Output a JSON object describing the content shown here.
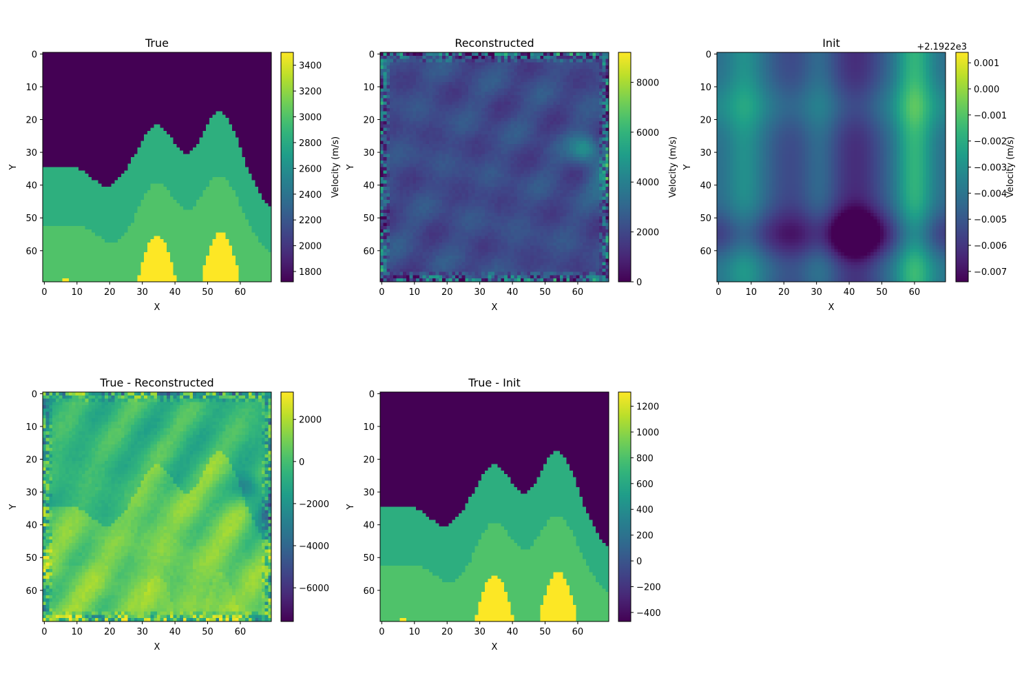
{
  "colors": {
    "viridis": [
      "#440154",
      "#482878",
      "#3e4989",
      "#31688e",
      "#26828e",
      "#1f9e89",
      "#35b779",
      "#6ece58",
      "#b5de2b",
      "#fde725"
    ]
  },
  "chart_data": [
    {
      "type": "heatmap",
      "title": "True",
      "xlabel": "X",
      "ylabel": "Y",
      "grid_size": [
        70,
        70
      ],
      "x_ticks": [
        "0",
        "10",
        "20",
        "30",
        "40",
        "50",
        "60"
      ],
      "y_ticks": [
        "0",
        "10",
        "20",
        "30",
        "40",
        "50",
        "60"
      ],
      "colorbar": {
        "label": "Velocity (m/s)",
        "range": [
          1720,
          3500
        ],
        "ticks": [
          1800,
          2000,
          2200,
          2400,
          2600,
          2800,
          3000,
          3200,
          3400
        ],
        "tick_labels": [
          "1800",
          "2000",
          "2200",
          "2400",
          "2600",
          "2800",
          "3000",
          "3200",
          "3400"
        ],
        "offset_text": ""
      },
      "layers": [
        {
          "value": 1720,
          "description": "top layer"
        },
        {
          "value": 2840,
          "description": "second layer"
        },
        {
          "value": 3000,
          "description": "third layer"
        },
        {
          "value": 3500,
          "description": "bottom domes"
        }
      ]
    },
    {
      "type": "heatmap",
      "title": "Reconstructed",
      "xlabel": "X",
      "ylabel": "Y",
      "grid_size": [
        70,
        70
      ],
      "x_ticks": [
        "0",
        "10",
        "20",
        "30",
        "40",
        "50",
        "60"
      ],
      "y_ticks": [
        "0",
        "10",
        "20",
        "30",
        "40",
        "50",
        "60"
      ],
      "colorbar": {
        "label": "Velocity (m/s)",
        "range": [
          0,
          9200
        ],
        "ticks": [
          0,
          2000,
          4000,
          6000,
          8000
        ],
        "tick_labels": [
          "0",
          "2000",
          "4000",
          "6000",
          "8000"
        ],
        "offset_text": ""
      }
    },
    {
      "type": "heatmap",
      "title": "Init",
      "xlabel": "X",
      "ylabel": "Y",
      "grid_size": [
        70,
        70
      ],
      "x_ticks": [
        "0",
        "10",
        "20",
        "30",
        "40",
        "50",
        "60"
      ],
      "y_ticks": [
        "0",
        "10",
        "20",
        "30",
        "40",
        "50",
        "60"
      ],
      "colorbar": {
        "label": "Velocity (m/s)",
        "range": [
          -0.0074,
          0.0014
        ],
        "ticks": [
          0.001,
          0.0,
          -0.001,
          -0.002,
          -0.003,
          -0.004,
          -0.005,
          -0.006,
          -0.007
        ],
        "tick_labels": [
          "0.001",
          "0.000",
          "−0.001",
          "−0.002",
          "−0.003",
          "−0.004",
          "−0.005",
          "−0.006",
          "−0.007"
        ],
        "offset_text": "+2.1922e3"
      }
    },
    {
      "type": "heatmap",
      "title": "True - Reconstructed",
      "xlabel": "X",
      "ylabel": "Y",
      "grid_size": [
        70,
        70
      ],
      "x_ticks": [
        "0",
        "10",
        "20",
        "30",
        "40",
        "50",
        "60"
      ],
      "y_ticks": [
        "0",
        "10",
        "20",
        "30",
        "40",
        "50",
        "60"
      ],
      "colorbar": {
        "label": "",
        "range": [
          -7600,
          3300
        ],
        "ticks": [
          2000,
          0,
          -2000,
          -4000,
          -6000
        ],
        "tick_labels": [
          "2000",
          "0",
          "−2000",
          "−4000",
          "−6000"
        ],
        "offset_text": ""
      }
    },
    {
      "type": "heatmap",
      "title": "True - Init",
      "xlabel": "X",
      "ylabel": "Y",
      "grid_size": [
        70,
        70
      ],
      "x_ticks": [
        "0",
        "10",
        "20",
        "30",
        "40",
        "50",
        "60"
      ],
      "y_ticks": [
        "0",
        "10",
        "20",
        "30",
        "40",
        "50",
        "60"
      ],
      "colorbar": {
        "label": "",
        "range": [
          -470,
          1310
        ],
        "ticks": [
          1200,
          1000,
          800,
          600,
          400,
          200,
          0,
          -200,
          -400
        ],
        "tick_labels": [
          "1200",
          "1000",
          "800",
          "600",
          "400",
          "200",
          "0",
          "−200",
          "−400"
        ],
        "offset_text": ""
      }
    }
  ]
}
